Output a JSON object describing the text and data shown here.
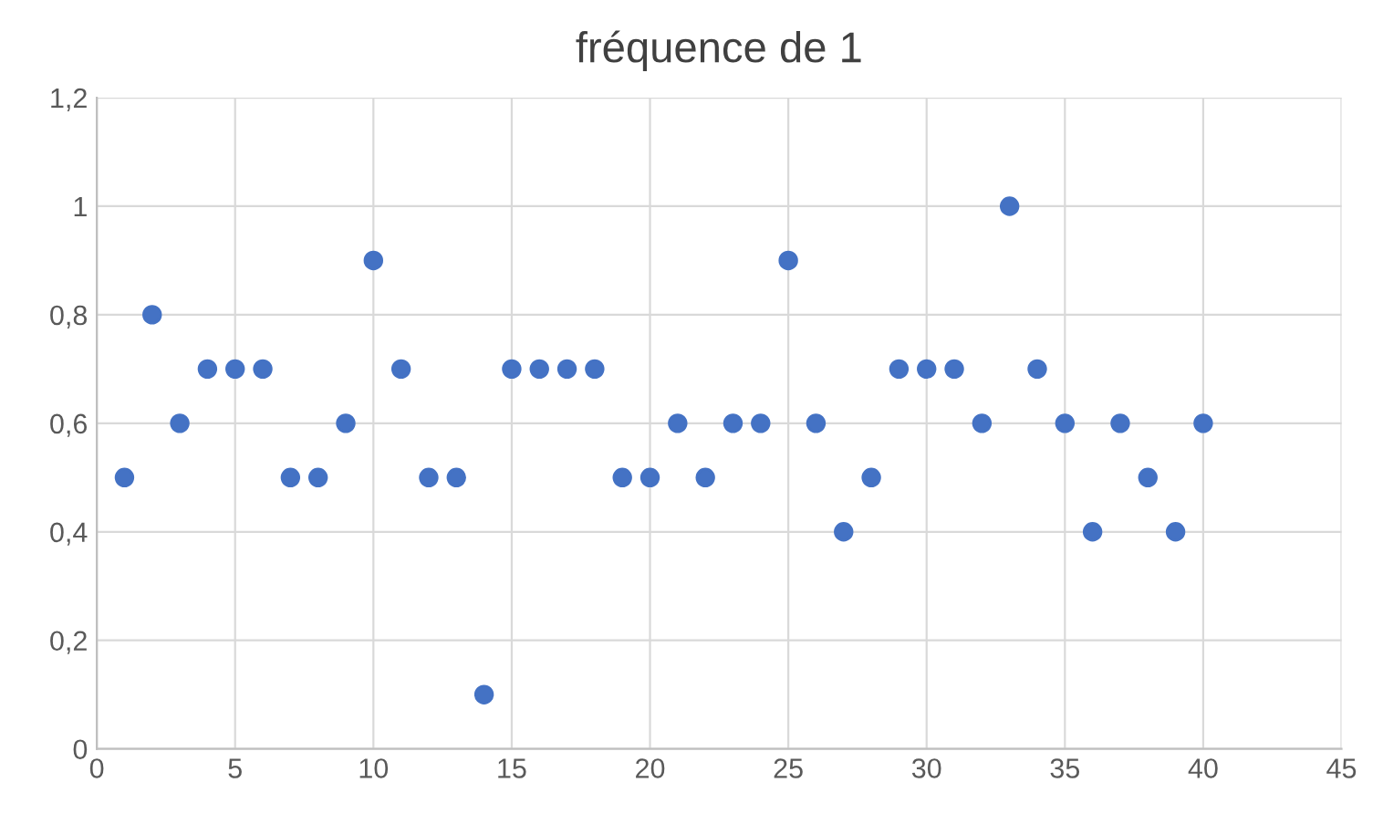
{
  "chart_data": {
    "type": "scatter",
    "title": "fréquence de 1",
    "x": [
      1,
      2,
      3,
      4,
      5,
      6,
      7,
      8,
      9,
      10,
      11,
      12,
      13,
      14,
      15,
      16,
      17,
      18,
      19,
      20,
      21,
      22,
      23,
      24,
      25,
      26,
      27,
      28,
      29,
      30,
      31,
      32,
      33,
      34,
      35,
      36,
      37,
      38,
      39,
      40
    ],
    "series": [
      {
        "color": "#4472c4",
        "values": [
          0.5,
          0.8,
          0.6,
          0.7,
          0.7,
          0.7,
          0.5,
          0.5,
          0.6,
          0.9,
          0.7,
          0.5,
          0.5,
          0.1,
          0.7,
          0.7,
          0.7,
          0.7,
          0.5,
          0.5,
          0.6,
          0.5,
          0.6,
          0.6,
          0.9,
          0.6,
          0.4,
          0.5,
          0.7,
          0.7,
          0.7,
          0.6,
          1.0,
          0.7,
          0.6,
          0.4,
          0.6,
          0.5,
          0.4,
          0.6
        ]
      }
    ],
    "xlim": [
      0,
      45
    ],
    "xticks": [
      0,
      5,
      10,
      15,
      20,
      25,
      30,
      35,
      40,
      45
    ],
    "ylim": [
      0,
      1.2
    ],
    "yticks": [
      0,
      {
        "value": 0.2,
        "label": "0,2"
      },
      {
        "value": 0.4,
        "label": "0,4"
      },
      {
        "value": 0.6,
        "label": "0,6"
      },
      {
        "value": 0.8,
        "label": "0,8"
      },
      1,
      {
        "value": 1.2,
        "label": "1,2"
      }
    ],
    "grid": true,
    "marker": "circle"
  }
}
